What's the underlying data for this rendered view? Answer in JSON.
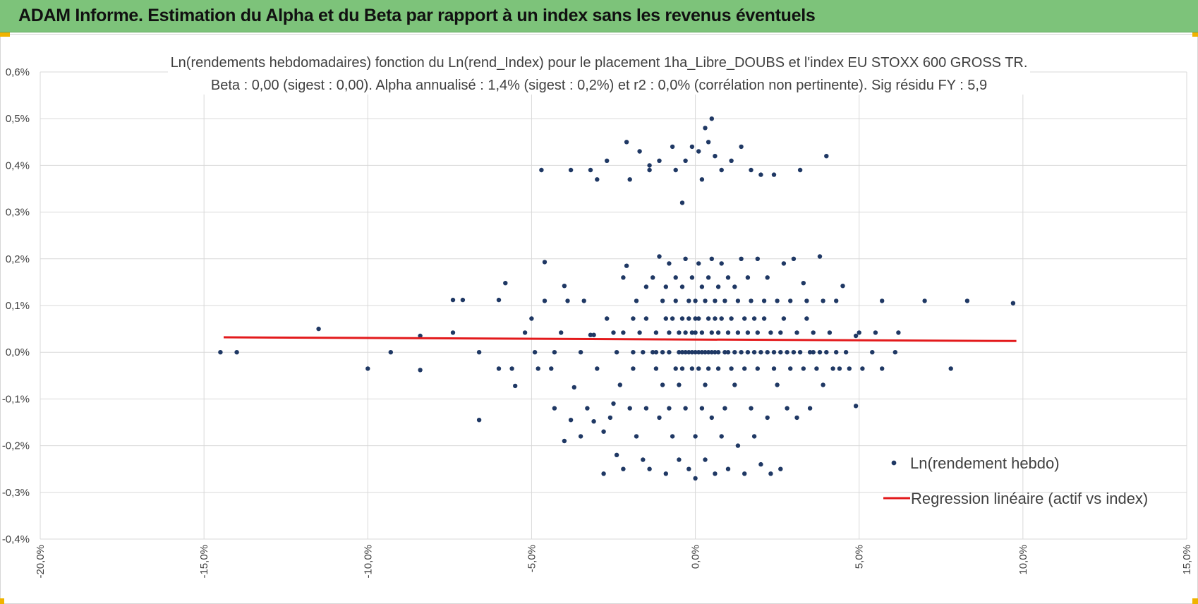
{
  "banner": {
    "title": "ADAM Informe. Estimation du Alpha et du Beta par rapport à un index sans les revenus éventuels",
    "color": "#7dc37a"
  },
  "chart_data": {
    "type": "scatter",
    "title": "Ln(rendements hebdomadaires) fonction du Ln(rend_Index) pour le placement 1ha_Libre_DOUBS et l'index EU STOXX 600 GROSS TR.",
    "subtitle": "Beta : 0,00 (sigest : 0,00). Alpha annualisé : 1,4% (sigest : 0,2%) et r2 : 0,0% (corrélation non pertinente). Sig résidu FY : 5,9",
    "xlabel": "",
    "ylabel": "",
    "xlim": [
      -0.2,
      0.15
    ],
    "ylim": [
      -0.004,
      0.006
    ],
    "x_ticks": [
      -0.2,
      -0.15,
      -0.1,
      -0.05,
      0.0,
      0.05,
      0.1,
      0.15
    ],
    "x_tick_labels": [
      "-20,0%",
      "-15,0%",
      "-10,0%",
      "-5,0%",
      "0,0%",
      "5,0%",
      "10,0%",
      "15,0%"
    ],
    "y_ticks": [
      -0.004,
      -0.003,
      -0.002,
      -0.001,
      0.0,
      0.001,
      0.002,
      0.003,
      0.004,
      0.005,
      0.006
    ],
    "y_tick_labels": [
      "-0,4%",
      "-0,3%",
      "-0,2%",
      "-0,1%",
      "0,0%",
      "0,1%",
      "0,2%",
      "0,3%",
      "0,4%",
      "0,5%",
      "0,6%"
    ],
    "grid": true,
    "legend_position": "bottom-right",
    "series": [
      {
        "name": "Ln(rendement hebdo)",
        "kind": "scatter",
        "color": "#1f3864",
        "points": [
          [
            -0.145,
            0.0
          ],
          [
            -0.14,
            0.0
          ],
          [
            -0.115,
            0.0005
          ],
          [
            -0.1,
            -0.00035
          ],
          [
            -0.093,
            0.0
          ],
          [
            -0.084,
            0.00035
          ],
          [
            -0.084,
            -0.00038
          ],
          [
            -0.074,
            0.00042
          ],
          [
            -0.074,
            0.00112
          ],
          [
            -0.071,
            0.00112
          ],
          [
            -0.066,
            -0.00145
          ],
          [
            -0.066,
            0.0
          ],
          [
            -0.06,
            0.00112
          ],
          [
            -0.06,
            -0.00035
          ],
          [
            -0.058,
            0.00148
          ],
          [
            -0.056,
            -0.00035
          ],
          [
            -0.055,
            -0.00072
          ],
          [
            -0.052,
            0.00042
          ],
          [
            -0.05,
            0.00072
          ],
          [
            -0.049,
            0.0
          ],
          [
            -0.048,
            -0.00035
          ],
          [
            -0.047,
            0.0039
          ],
          [
            -0.046,
            0.0011
          ],
          [
            -0.046,
            0.00193
          ],
          [
            -0.044,
            -0.00035
          ],
          [
            -0.043,
            0.0
          ],
          [
            -0.043,
            -0.0012
          ],
          [
            -0.041,
            0.00042
          ],
          [
            -0.04,
            -0.0019
          ],
          [
            -0.04,
            0.00142
          ],
          [
            -0.039,
            0.0011
          ],
          [
            -0.038,
            -0.00145
          ],
          [
            -0.038,
            0.0039
          ],
          [
            -0.037,
            -0.00075
          ],
          [
            -0.035,
            -0.0018
          ],
          [
            -0.035,
            0.0
          ],
          [
            -0.034,
            0.0011
          ],
          [
            -0.033,
            -0.0012
          ],
          [
            -0.032,
            0.0039
          ],
          [
            -0.032,
            0.00037
          ],
          [
            -0.031,
            -0.00148
          ],
          [
            -0.031,
            0.00037
          ],
          [
            -0.03,
            0.0037
          ],
          [
            -0.03,
            -0.00035
          ],
          [
            -0.028,
            -0.0017
          ],
          [
            -0.028,
            -0.0026
          ],
          [
            -0.027,
            0.00072
          ],
          [
            -0.027,
            0.0041
          ],
          [
            -0.026,
            -0.0014
          ],
          [
            -0.025,
            0.00042
          ],
          [
            -0.025,
            -0.0011
          ],
          [
            -0.024,
            -0.0022
          ],
          [
            -0.024,
            0.0
          ],
          [
            -0.023,
            -0.0007
          ],
          [
            -0.022,
            0.0016
          ],
          [
            -0.022,
            0.00042
          ],
          [
            -0.022,
            -0.0025
          ],
          [
            -0.021,
            0.0045
          ],
          [
            -0.021,
            0.00185
          ],
          [
            -0.02,
            -0.0012
          ],
          [
            -0.02,
            0.0037
          ],
          [
            -0.019,
            0.0
          ],
          [
            -0.019,
            0.00072
          ],
          [
            -0.019,
            -0.00035
          ],
          [
            -0.018,
            0.0011
          ],
          [
            -0.018,
            -0.0018
          ],
          [
            -0.017,
            0.00042
          ],
          [
            -0.017,
            0.0043
          ],
          [
            -0.016,
            0.0
          ],
          [
            -0.016,
            -0.0023
          ],
          [
            -0.015,
            0.0014
          ],
          [
            -0.015,
            0.00072
          ],
          [
            -0.015,
            -0.0012
          ],
          [
            -0.014,
            0.004
          ],
          [
            -0.014,
            0.0039
          ],
          [
            -0.014,
            -0.0025
          ],
          [
            -0.013,
            0.0
          ],
          [
            -0.013,
            0.0016
          ],
          [
            -0.012,
            0.00042
          ],
          [
            -0.012,
            -0.00035
          ],
          [
            -0.012,
            0.0
          ],
          [
            -0.011,
            -0.0014
          ],
          [
            -0.011,
            0.00205
          ],
          [
            -0.011,
            0.0041
          ],
          [
            -0.01,
            0.0011
          ],
          [
            -0.01,
            -0.0007
          ],
          [
            -0.01,
            0.0
          ],
          [
            -0.009,
            0.00072
          ],
          [
            -0.009,
            0.0014
          ],
          [
            -0.009,
            -0.0026
          ],
          [
            -0.008,
            0.0019
          ],
          [
            -0.008,
            0.00042
          ],
          [
            -0.008,
            -0.0012
          ],
          [
            -0.008,
            0.0
          ],
          [
            -0.007,
            0.0044
          ],
          [
            -0.007,
            -0.0018
          ],
          [
            -0.007,
            0.00072
          ],
          [
            -0.006,
            0.0011
          ],
          [
            -0.006,
            -0.00035
          ],
          [
            -0.006,
            0.0016
          ],
          [
            -0.006,
            0.0039
          ],
          [
            -0.005,
            0.0
          ],
          [
            -0.005,
            0.00042
          ],
          [
            -0.005,
            -0.0023
          ],
          [
            -0.005,
            -0.0007
          ],
          [
            -0.004,
            0.00072
          ],
          [
            -0.004,
            0.0014
          ],
          [
            -0.004,
            0.0
          ],
          [
            -0.004,
            0.0032
          ],
          [
            -0.004,
            -0.00035
          ],
          [
            -0.003,
            0.002
          ],
          [
            -0.003,
            0.00042
          ],
          [
            -0.003,
            -0.0012
          ],
          [
            -0.003,
            0.0041
          ],
          [
            -0.003,
            0.0
          ],
          [
            -0.002,
            0.0011
          ],
          [
            -0.002,
            0.00072
          ],
          [
            -0.002,
            -0.0025
          ],
          [
            -0.002,
            0.0
          ],
          [
            -0.001,
            0.0016
          ],
          [
            -0.001,
            0.00042
          ],
          [
            -0.001,
            -0.00035
          ],
          [
            -0.001,
            0.0044
          ],
          [
            -0.001,
            0.0
          ],
          [
            0.0,
            0.00072
          ],
          [
            0.0,
            -0.0018
          ],
          [
            0.0,
            0.0
          ],
          [
            0.0,
            0.0011
          ],
          [
            0.0,
            -0.0027
          ],
          [
            0.0,
            0.00042
          ],
          [
            0.001,
            0.0019
          ],
          [
            0.001,
            0.0
          ],
          [
            0.001,
            -0.00035
          ],
          [
            0.001,
            0.0043
          ],
          [
            0.001,
            0.00072
          ],
          [
            0.002,
            -0.0012
          ],
          [
            0.002,
            0.0014
          ],
          [
            0.002,
            0.0
          ],
          [
            0.002,
            0.0037
          ],
          [
            0.002,
            0.00042
          ],
          [
            0.003,
            0.0011
          ],
          [
            0.003,
            -0.0007
          ],
          [
            0.003,
            0.0
          ],
          [
            0.003,
            0.0048
          ],
          [
            0.003,
            -0.0023
          ],
          [
            0.004,
            0.00072
          ],
          [
            0.004,
            0.0016
          ],
          [
            0.004,
            0.0
          ],
          [
            0.004,
            0.0045
          ],
          [
            0.004,
            -0.00035
          ],
          [
            0.005,
            0.00042
          ],
          [
            0.005,
            0.002
          ],
          [
            0.005,
            -0.0014
          ],
          [
            0.005,
            0.0
          ],
          [
            0.005,
            0.005
          ],
          [
            0.006,
            0.0011
          ],
          [
            0.006,
            0.00072
          ],
          [
            0.006,
            -0.0026
          ],
          [
            0.006,
            0.0
          ],
          [
            0.006,
            0.0042
          ],
          [
            0.007,
            0.0014
          ],
          [
            0.007,
            0.00042
          ],
          [
            0.007,
            -0.00035
          ],
          [
            0.007,
            0.0
          ],
          [
            0.008,
            0.0039
          ],
          [
            0.008,
            0.00072
          ],
          [
            0.008,
            -0.0018
          ],
          [
            0.008,
            0.0019
          ],
          [
            0.009,
            0.0
          ],
          [
            0.009,
            0.0011
          ],
          [
            0.009,
            -0.0012
          ],
          [
            0.01,
            0.00042
          ],
          [
            0.01,
            0.0016
          ],
          [
            0.01,
            0.0
          ],
          [
            0.01,
            -0.0025
          ],
          [
            0.011,
            0.00072
          ],
          [
            0.011,
            -0.00035
          ],
          [
            0.011,
            0.0041
          ],
          [
            0.012,
            0.0
          ],
          [
            0.012,
            0.0014
          ],
          [
            0.012,
            -0.0007
          ],
          [
            0.013,
            0.00042
          ],
          [
            0.013,
            0.0011
          ],
          [
            0.013,
            -0.002
          ],
          [
            0.014,
            0.0
          ],
          [
            0.014,
            0.002
          ],
          [
            0.014,
            0.0044
          ],
          [
            0.015,
            0.00072
          ],
          [
            0.015,
            -0.00035
          ],
          [
            0.015,
            -0.0026
          ],
          [
            0.016,
            0.0
          ],
          [
            0.016,
            0.0016
          ],
          [
            0.016,
            0.00042
          ],
          [
            0.017,
            -0.0012
          ],
          [
            0.017,
            0.0011
          ],
          [
            0.017,
            0.0039
          ],
          [
            0.018,
            0.0
          ],
          [
            0.018,
            0.00072
          ],
          [
            0.018,
            -0.0018
          ],
          [
            0.019,
            0.002
          ],
          [
            0.019,
            0.00042
          ],
          [
            0.019,
            -0.00035
          ],
          [
            0.02,
            0.0
          ],
          [
            0.02,
            0.0038
          ],
          [
            0.02,
            -0.0024
          ],
          [
            0.021,
            0.0011
          ],
          [
            0.021,
            0.00072
          ],
          [
            0.022,
            0.0
          ],
          [
            0.022,
            -0.0014
          ],
          [
            0.022,
            0.0016
          ],
          [
            0.023,
            0.00042
          ],
          [
            0.023,
            -0.0026
          ],
          [
            0.024,
            0.0
          ],
          [
            0.024,
            0.0038
          ],
          [
            0.024,
            -0.00035
          ],
          [
            0.025,
            0.0011
          ],
          [
            0.025,
            -0.0007
          ],
          [
            0.026,
            0.00042
          ],
          [
            0.026,
            0.0
          ],
          [
            0.026,
            -0.0025
          ],
          [
            0.027,
            0.0019
          ],
          [
            0.027,
            0.00072
          ],
          [
            0.028,
            -0.0012
          ],
          [
            0.028,
            0.0
          ],
          [
            0.029,
            0.0011
          ],
          [
            0.029,
            -0.00035
          ],
          [
            0.03,
            0.002
          ],
          [
            0.03,
            0.0
          ],
          [
            0.031,
            0.00042
          ],
          [
            0.031,
            -0.0014
          ],
          [
            0.032,
            0.0039
          ],
          [
            0.032,
            0.0
          ],
          [
            0.033,
            0.00148
          ],
          [
            0.033,
            -0.00035
          ],
          [
            0.034,
            0.0011
          ],
          [
            0.034,
            0.00072
          ],
          [
            0.035,
            0.0
          ],
          [
            0.035,
            -0.0012
          ],
          [
            0.036,
            0.00042
          ],
          [
            0.036,
            0.0
          ],
          [
            0.037,
            -0.00035
          ],
          [
            0.038,
            0.00205
          ],
          [
            0.038,
            0.0
          ],
          [
            0.039,
            0.0011
          ],
          [
            0.039,
            -0.0007
          ],
          [
            0.04,
            0.0042
          ],
          [
            0.04,
            0.0
          ],
          [
            0.041,
            0.00042
          ],
          [
            0.042,
            -0.00035
          ],
          [
            0.043,
            0.0011
          ],
          [
            0.043,
            0.0
          ],
          [
            0.044,
            -0.00035
          ],
          [
            0.045,
            0.00142
          ],
          [
            0.046,
            0.0
          ],
          [
            0.047,
            -0.00035
          ],
          [
            0.049,
            0.00035
          ],
          [
            0.049,
            -0.00115
          ],
          [
            0.05,
            0.00042
          ],
          [
            0.051,
            -0.00035
          ],
          [
            0.054,
            0.0
          ],
          [
            0.055,
            0.00042
          ],
          [
            0.057,
            0.0011
          ],
          [
            0.057,
            -0.00035
          ],
          [
            0.061,
            0.0
          ],
          [
            0.062,
            0.00042
          ],
          [
            0.07,
            0.0011
          ],
          [
            0.078,
            -0.00035
          ],
          [
            0.083,
            0.0011
          ],
          [
            0.097,
            0.00105
          ]
        ]
      },
      {
        "name": "Regression linéaire (actif vs index)",
        "kind": "line",
        "color": "#e31a1c",
        "points": [
          [
            -0.144,
            0.00032
          ],
          [
            0.098,
            0.00024
          ]
        ]
      }
    ]
  },
  "legend": {
    "scatter_label": "Ln(rendement hebdo)",
    "line_label": "Regression linéaire (actif vs index)"
  }
}
